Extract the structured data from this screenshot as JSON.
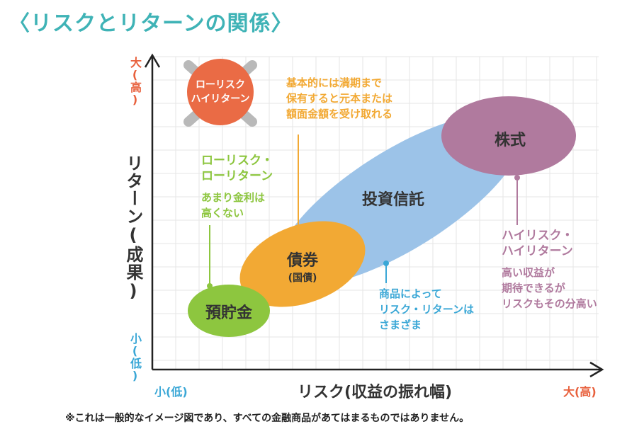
{
  "title": "〈リスクとリターンの関係〉",
  "axes": {
    "y_label": "リターン(成果)",
    "x_label": "リスク(収益の振れ幅)",
    "y_high": "大(高)",
    "y_low": "小(低)",
    "x_low": "小(低)",
    "x_high": "大(高)"
  },
  "crossed_bubble": {
    "line1": "ローリスク",
    "line2": "ハイリターン"
  },
  "bubbles": {
    "savings": "預貯金",
    "bonds": "債券",
    "bonds_sub": "(国債)",
    "trust": "投資信託",
    "stocks": "株式"
  },
  "annotations": {
    "bond_note": [
      "基本的には満期まで",
      "保有すると元本または",
      "額面金額を受け取れる"
    ],
    "low_note_title": [
      "ローリスク・",
      "ローリターン"
    ],
    "low_note_body": [
      "あまり金利は",
      "高くない"
    ],
    "trust_note": [
      "商品によって",
      "リスク・リターンは",
      "さまざま"
    ],
    "high_note_title": [
      "ハイリスク・",
      "ハイリターン"
    ],
    "high_note_body": [
      "高い収益が",
      "期待できるが",
      "リスクもその分高い"
    ]
  },
  "footnote": "※これは一般的なイメージ図であり、すべての金融商品があてはまるものではありません。",
  "colors": {
    "title": "#3fb3b6",
    "savings": "#8dc63f",
    "bonds": "#f2a934",
    "trust": "#9cc3e8",
    "stocks": "#b07a9e",
    "crossed": "#ea6b45",
    "high_text": "#e8603c",
    "low_text": "#3aa7d6"
  }
}
